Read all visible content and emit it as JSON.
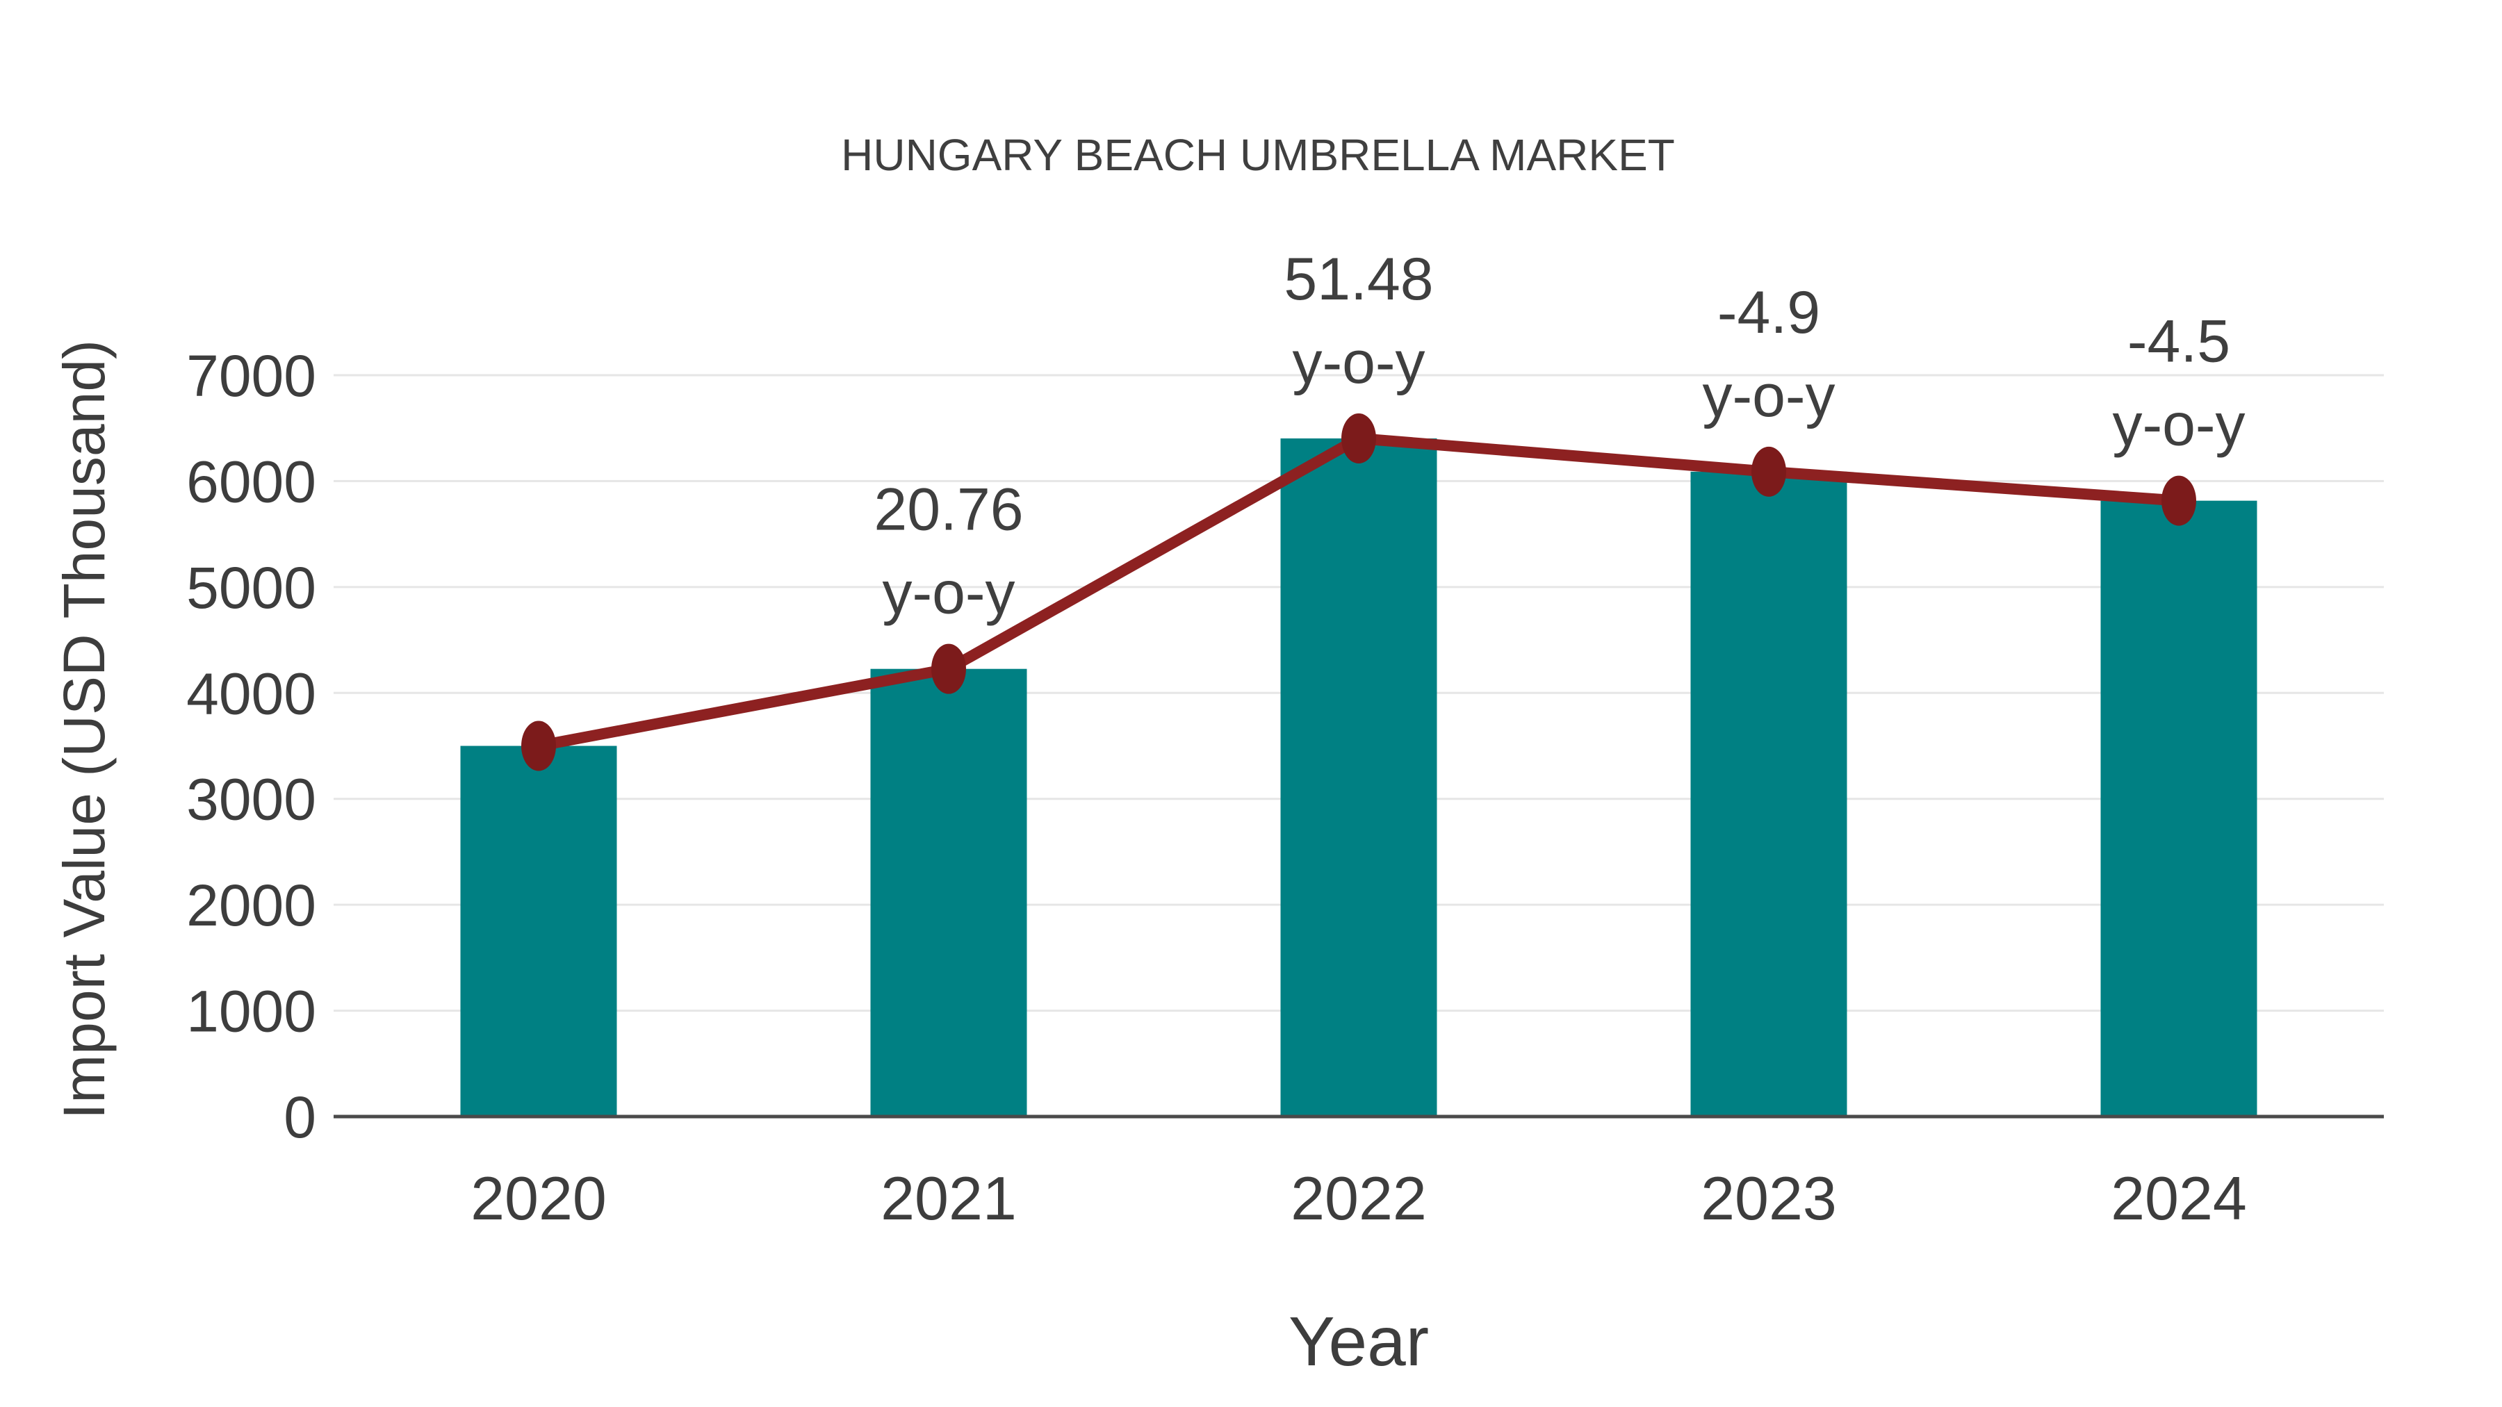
{
  "chart_data": {
    "type": "bar",
    "title": "HUNGARY BEACH UMBRELLA MARKET",
    "xlabel": "Year",
    "ylabel": "Import Value (USD Thousand)",
    "categories": [
      "2020",
      "2021",
      "2022",
      "2023",
      "2024"
    ],
    "series": [
      {
        "name": "import-value-bars",
        "type": "bar",
        "values": [
          3500,
          4227,
          6403,
          6089,
          5815
        ],
        "color": "#008083"
      },
      {
        "name": "import-value-trend",
        "type": "line",
        "values": [
          3500,
          4227,
          6403,
          6089,
          5815
        ],
        "color": "#8D2121",
        "marker_color": "#7C1B1B"
      }
    ],
    "annotations": [
      {
        "category": "2021",
        "value": "20.76",
        "label": "y-o-y"
      },
      {
        "category": "2022",
        "value": "51.48",
        "label": "y-o-y"
      },
      {
        "category": "2023",
        "value": "-4.9",
        "label": "y-o-y"
      },
      {
        "category": "2024",
        "value": "-4.5",
        "label": "y-o-y"
      }
    ],
    "ylim": [
      0,
      7000
    ],
    "yticks": [
      0,
      1000,
      2000,
      3000,
      4000,
      5000,
      6000,
      7000
    ],
    "grid": "horizontal",
    "legend": "none"
  },
  "colors": {
    "background": "#ffffff",
    "bar": "#008083",
    "line": "#8D2121",
    "marker": "#7C1B1B",
    "text": "#3d3d3d",
    "gridline": "#e6e6e6",
    "axis": "#4a4a4a"
  }
}
